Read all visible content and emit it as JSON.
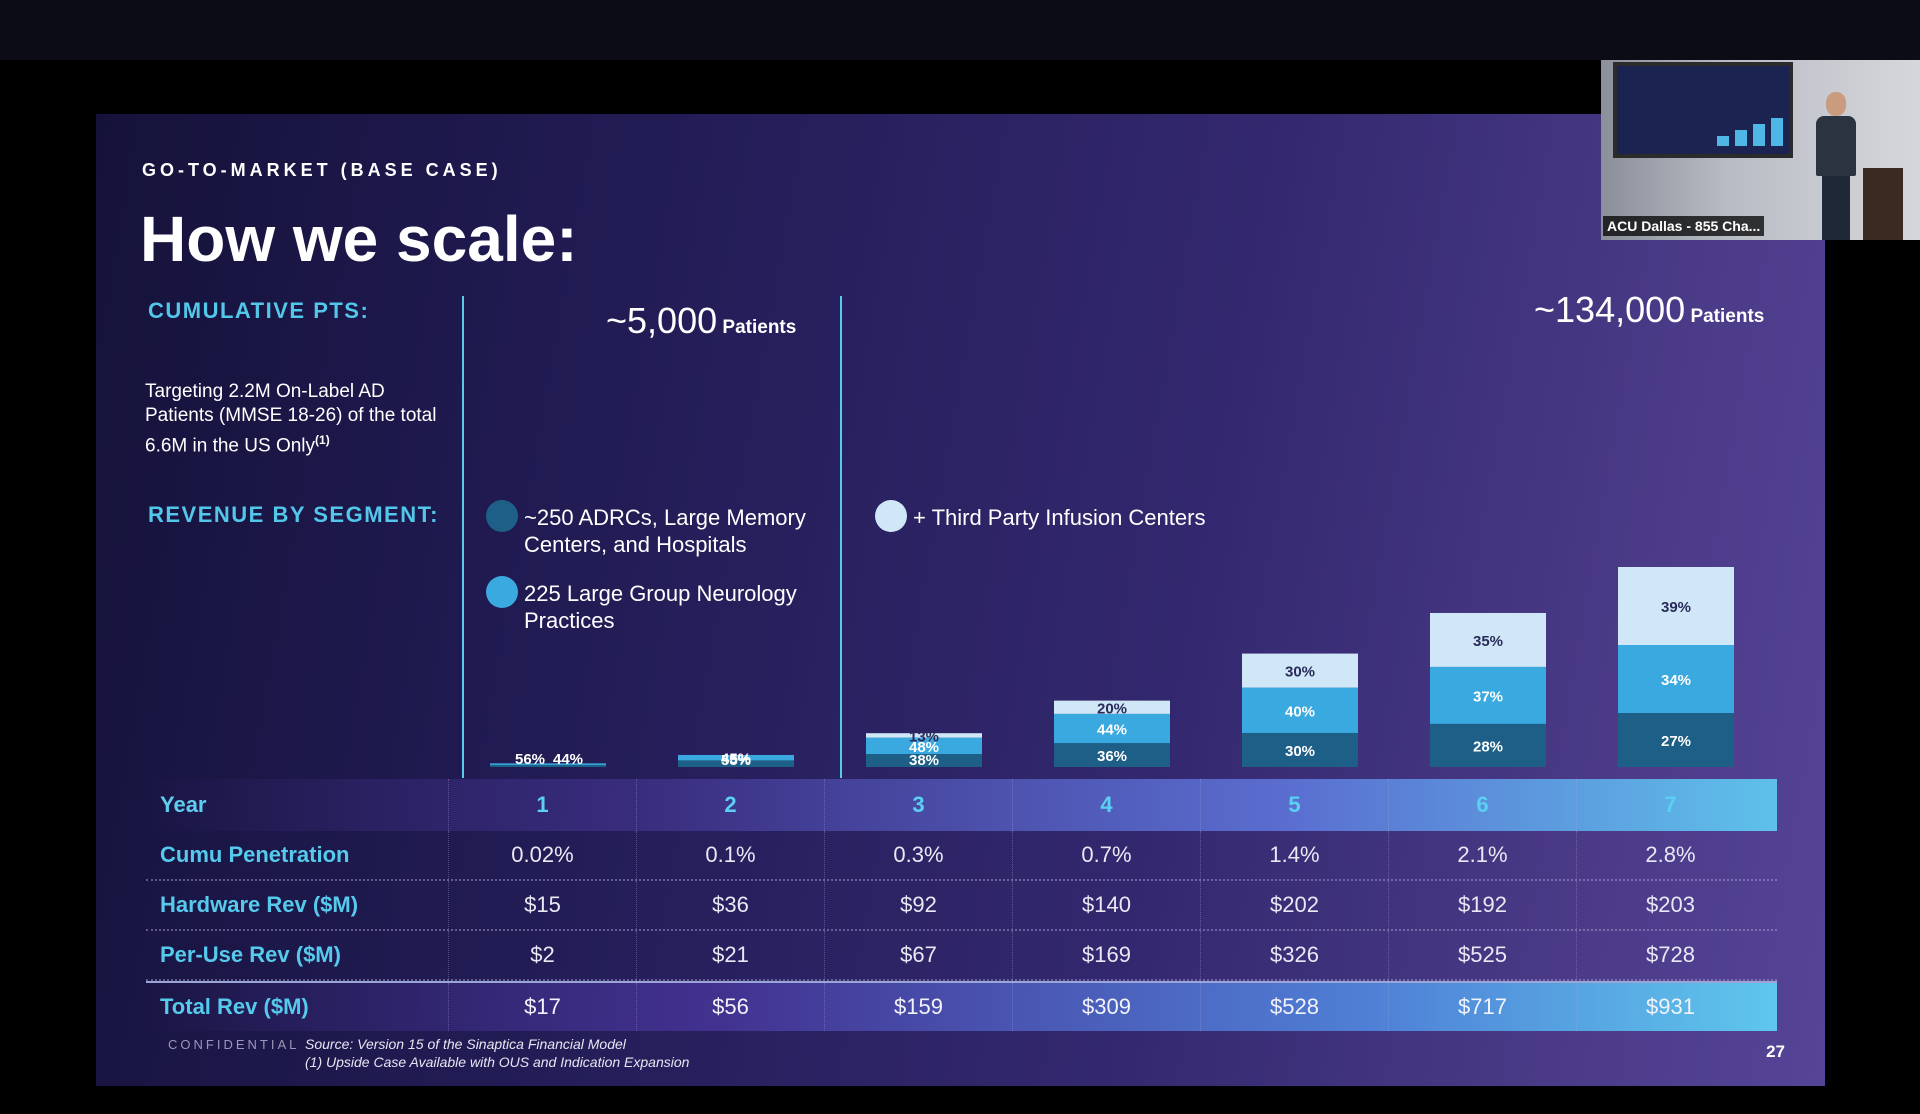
{
  "slide": {
    "eyebrow": "GO-TO-MARKET (BASE CASE)",
    "title": "How we scale:",
    "cumulative_label": "CUMULATIVE PTS:",
    "targeting_note": "Targeting 2.2M On-Label AD Patients (MMSE 18-26) of the total 6.6M in the US Only",
    "targeting_sup": "(1)",
    "revenue_label": "REVENUE BY SEGMENT:",
    "patients_left_num": "~5,000",
    "patients_left_word": "Patients",
    "patients_right_num": "~134,000",
    "patients_right_word": "Patients",
    "legend": [
      {
        "label": "~250 ADRCs, Large Memory Centers, and Hospitals",
        "color": "#1e5f87"
      },
      {
        "label": "225 Large Group Neurology Practices",
        "color": "#39a9df"
      },
      {
        "label": "+ Third Party Infusion Centers",
        "color": "#cfe7f6"
      }
    ],
    "confidential": "CONFIDENTIAL",
    "source": "Source: Version 15 of the Sinaptica Financial Model",
    "footnote": "(1)   Upside Case Available with OUS and Indication Expansion",
    "page_number": "27"
  },
  "chart_data": {
    "type": "bar",
    "stacked": true,
    "categories": [
      "1",
      "2",
      "3",
      "4",
      "5",
      "6",
      "7"
    ],
    "values_total": [
      17,
      56,
      159,
      309,
      528,
      717,
      931
    ],
    "series": [
      {
        "name": "~250 ADRCs, Large Memory Centers, and Hospitals",
        "values": [
          56,
          55,
          38,
          36,
          30,
          28,
          27
        ],
        "labels": [
          "56%",
          "55%",
          "38%",
          "36%",
          "30%",
          "28%",
          "27%"
        ],
        "color": "#1e5f87"
      },
      {
        "name": "225 Large Group Neurology Practices",
        "values": [
          44,
          45,
          48,
          44,
          40,
          37,
          34
        ],
        "labels": [
          "44%",
          "45%",
          "48%",
          "44%",
          "40%",
          "37%",
          "34%"
        ],
        "color": "#39a9df"
      },
      {
        "name": "+ Third Party Infusion Centers",
        "values": [
          0,
          0,
          13,
          20,
          30,
          35,
          39
        ],
        "labels": [
          "",
          "",
          "13%",
          "20%",
          "30%",
          "35%",
          "39%"
        ],
        "color": "#cfe7f6"
      }
    ]
  },
  "table": {
    "rows": [
      {
        "label": "Year",
        "values": [
          "1",
          "2",
          "3",
          "4",
          "5",
          "6",
          "7"
        ]
      },
      {
        "label": "Cumu Penetration",
        "values": [
          "0.02%",
          "0.1%",
          "0.3%",
          "0.7%",
          "1.4%",
          "2.1%",
          "2.8%"
        ]
      },
      {
        "label": "Hardware Rev ($M)",
        "values": [
          "$15",
          "$36",
          "$92",
          "$140",
          "$202",
          "$192",
          "$203"
        ]
      },
      {
        "label": "Per-Use Rev ($M)",
        "values": [
          "$2",
          "$21",
          "$67",
          "$169",
          "$326",
          "$525",
          "$728"
        ]
      },
      {
        "label": "Total Rev ($M)",
        "values": [
          "$17",
          "$56",
          "$159",
          "$309",
          "$528",
          "$717",
          "$931"
        ]
      }
    ]
  },
  "video": {
    "caption": "ACU Dallas - 855 Cha..."
  }
}
